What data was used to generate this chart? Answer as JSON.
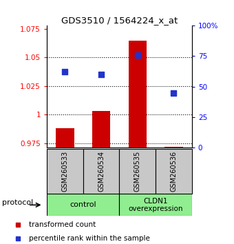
{
  "title": "GDS3510 / 1564224_x_at",
  "samples": [
    "GSM260533",
    "GSM260534",
    "GSM260535",
    "GSM260536"
  ],
  "bar_values": [
    0.988,
    1.003,
    1.065,
    0.972
  ],
  "bar_baseline": 0.971,
  "ylim_left": [
    0.971,
    1.078
  ],
  "ylim_right": [
    0,
    100
  ],
  "yticks_left": [
    0.975,
    1.0,
    1.025,
    1.05,
    1.075
  ],
  "yticks_right": [
    0,
    25,
    50,
    75,
    100
  ],
  "ytick_labels_left": [
    "0.975",
    "1",
    "1.025",
    "1.05",
    "1.075"
  ],
  "ytick_labels_right": [
    "0",
    "25",
    "50",
    "75",
    "100%"
  ],
  "hlines": [
    0.975,
    1.0,
    1.025,
    1.05
  ],
  "bar_color": "#cc0000",
  "blue_color": "#2233cc",
  "group1_label": "control",
  "group2_label": "CLDN1\noverexpression",
  "group1_samples": [
    0,
    1
  ],
  "group2_samples": [
    2,
    3
  ],
  "protocol_label": "protocol",
  "legend1": "transformed count",
  "legend2": "percentile rank within the sample",
  "group_bg_color": "#90ee90",
  "sample_bg_color": "#c8c8c8",
  "bar_width": 0.5,
  "blue_size": 28,
  "blue_values_scaled": [
    62,
    60,
    76,
    45
  ]
}
